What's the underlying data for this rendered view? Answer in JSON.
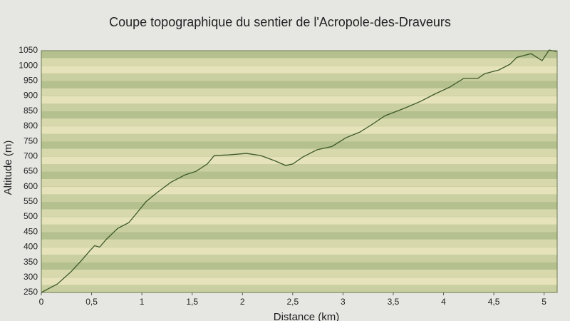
{
  "chart_data": {
    "type": "line",
    "title": "Coupe topographique du sentier de l'Acropole-des-Draveurs",
    "x_label": "Distance (km)",
    "y_label": "Altitude (m)",
    "x": [
      0,
      0.16,
      0.3,
      0.4,
      0.48,
      0.53,
      0.58,
      0.65,
      0.76,
      0.87,
      0.94,
      1.04,
      1.15,
      1.29,
      1.43,
      1.54,
      1.65,
      1.72,
      1.86,
      2.04,
      2.18,
      2.32,
      2.43,
      2.5,
      2.6,
      2.74,
      2.89,
      3.03,
      3.17,
      3.28,
      3.42,
      3.6,
      3.77,
      3.91,
      4.06,
      4.2,
      4.34,
      4.41,
      4.55,
      4.66,
      4.73,
      4.87,
      4.98,
      5.05,
      5.12
    ],
    "series": [
      {
        "name": "Altitude",
        "color": "#3f5a2a",
        "values": [
          250,
          278,
          320,
          356,
          387,
          405,
          400,
          427,
          462,
          481,
          509,
          550,
          580,
          615,
          639,
          651,
          675,
          703,
          705,
          710,
          703,
          686,
          670,
          675,
          698,
          722,
          733,
          762,
          781,
          804,
          835,
          858,
          882,
          906,
          929,
          958,
          958,
          974,
          986,
          1005,
          1028,
          1040,
          1017,
          1052,
          1047
        ]
      }
    ],
    "xlim": [
      0,
      5.13
    ],
    "ylim": [
      250,
      1050
    ],
    "xticks": [
      0,
      {
        "value": 0.5,
        "label": "0,5"
      },
      1,
      {
        "value": 1.5,
        "label": "1,5"
      },
      2,
      {
        "value": 2.5,
        "label": "2,5"
      },
      3,
      {
        "value": 3.5,
        "label": "3,5"
      },
      4,
      {
        "value": 4.5,
        "label": "4,5"
      },
      5
    ],
    "yticks": [
      250,
      300,
      350,
      400,
      450,
      500,
      550,
      600,
      650,
      700,
      750,
      800,
      850,
      900,
      950,
      1000,
      1050
    ],
    "grid": true
  }
}
